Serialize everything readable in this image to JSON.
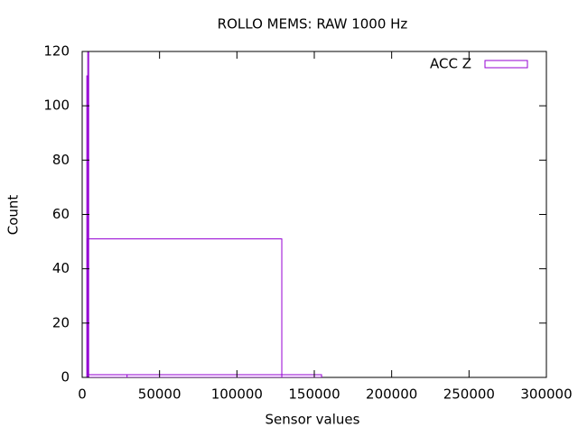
{
  "chart_data": {
    "type": "histogram",
    "title": "ROLLO MEMS: RAW 1000 Hz",
    "x_label": "Sensor values",
    "y_label": "Count",
    "series": [
      {
        "name": "ACC Z",
        "color": "#9400d3",
        "x_start": [
          3500,
          3500,
          3500,
          3000,
          3600
        ],
        "x_end": [
          129000,
          154700,
          29000,
          4000,
          4200
        ],
        "values": [
          51,
          1,
          1,
          111,
          130
        ]
      }
    ],
    "xlim": [
      0,
      300000
    ],
    "xticks": [
      0,
      50000,
      100000,
      150000,
      200000,
      250000,
      300000
    ],
    "ylim": [
      0,
      120
    ],
    "yticks": [
      0,
      20,
      40,
      60,
      80,
      100,
      120
    ],
    "grid": false,
    "legend": "top-right"
  }
}
